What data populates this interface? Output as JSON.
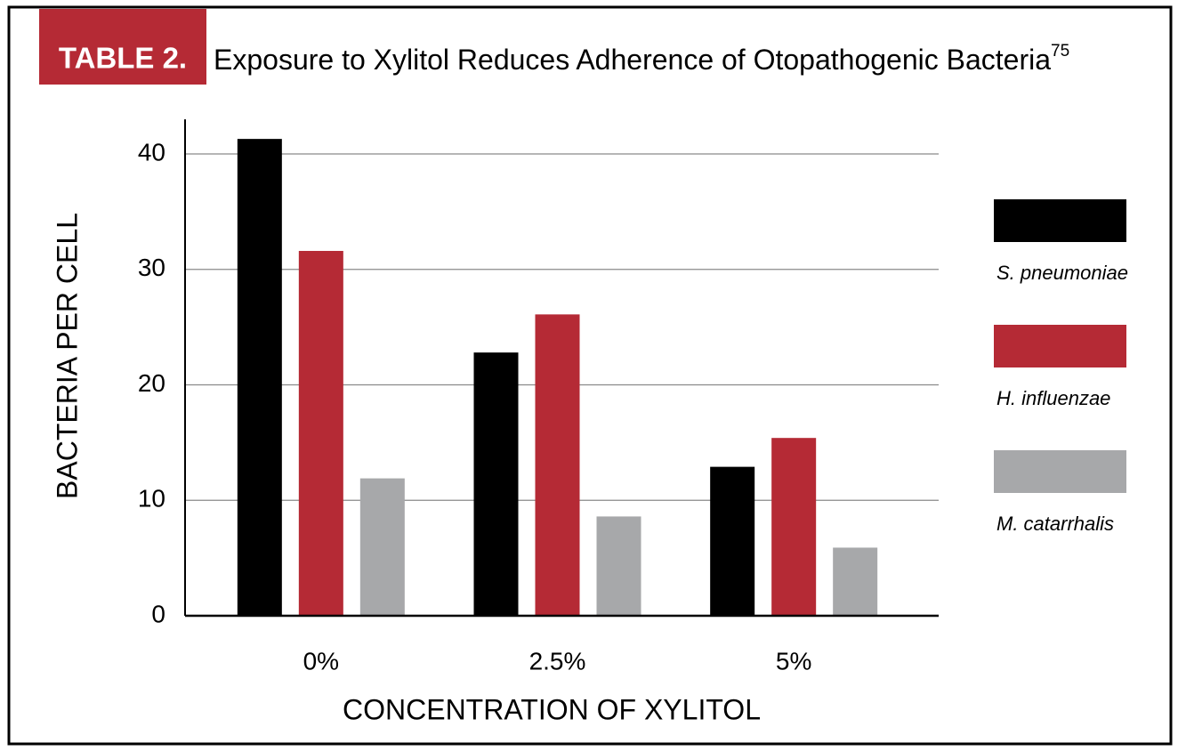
{
  "chart_data": {
    "type": "bar",
    "label": "TABLE 2.",
    "title": "Exposure to Xylitol Reduces Adherence of Otopathogenic Bacteria",
    "title_reference": "75",
    "x_label": "CONCENTRATION OF XYLITOL",
    "y_label": "BACTERIA PER CELL",
    "categories": [
      "0%",
      "2.5%",
      "5%"
    ],
    "series": [
      {
        "name": "S. pneumoniae",
        "color": "#000000",
        "values": [
          41.3,
          22.8,
          12.9
        ]
      },
      {
        "name": "H. influenzae",
        "color": "#b52a35",
        "values": [
          31.6,
          26.1,
          15.4
        ]
      },
      {
        "name": "M. catarrhalis",
        "color": "#a7a8aa",
        "values": [
          11.9,
          8.6,
          5.9
        ]
      }
    ],
    "ylim": [
      0,
      43
    ],
    "yticks": [
      0,
      10,
      20,
      30,
      40
    ],
    "grid": true,
    "legend": "right"
  }
}
